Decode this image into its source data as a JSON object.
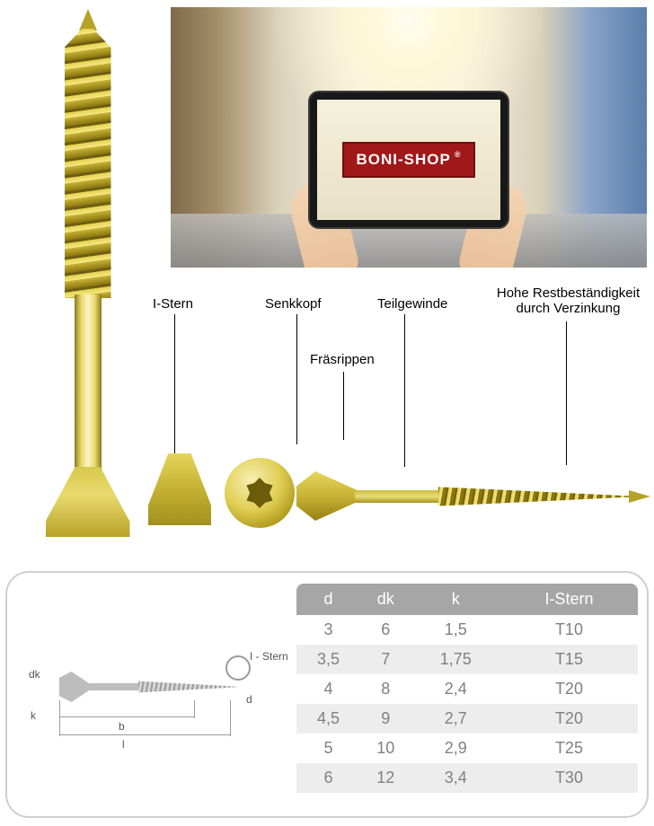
{
  "hero": {
    "brand": "BONI-SHOP",
    "brand_badge_bg": "#a01817",
    "brand_badge_border": "#700f0e",
    "brand_text_color": "#ffffff"
  },
  "feature_labels": {
    "l1": "I-Stern",
    "l2": "Senkkopf",
    "l3": "Teilgewinde",
    "l4": "Hohe Restbeständigkeit durch Verzinkung",
    "l5": "Fräsrippen"
  },
  "diagram_labels": {
    "dk": "dk",
    "k": "k",
    "b": "b",
    "l": "l",
    "d": "d",
    "istern": "I - Stern"
  },
  "spec_table": {
    "type": "table",
    "header_bg": "#a6a6a6",
    "header_text_color": "#ffffff",
    "body_text_color": "#808080",
    "row_alt_bg": "#ededed",
    "font_size": 18,
    "columns": [
      "d",
      "dk",
      "k",
      "I-Stern"
    ],
    "rows": [
      [
        "3",
        "6",
        "1,5",
        "T10"
      ],
      [
        "3,5",
        "7",
        "1,75",
        "T15"
      ],
      [
        "4",
        "8",
        "2,4",
        "T20"
      ],
      [
        "4,5",
        "9",
        "2,7",
        "T20"
      ],
      [
        "5",
        "10",
        "2,9",
        "T25"
      ],
      [
        "6",
        "12",
        "3,4",
        "T30"
      ]
    ],
    "col_align": [
      "center",
      "center",
      "center",
      "center"
    ]
  },
  "colors": {
    "screw_gold_light": "#f4e889",
    "screw_gold_mid": "#e5d24a",
    "screw_gold_dark": "#8a760f",
    "panel_border": "#cfcfcf",
    "diagram_stroke": "#9a9a9a",
    "label_text": "#000000"
  }
}
